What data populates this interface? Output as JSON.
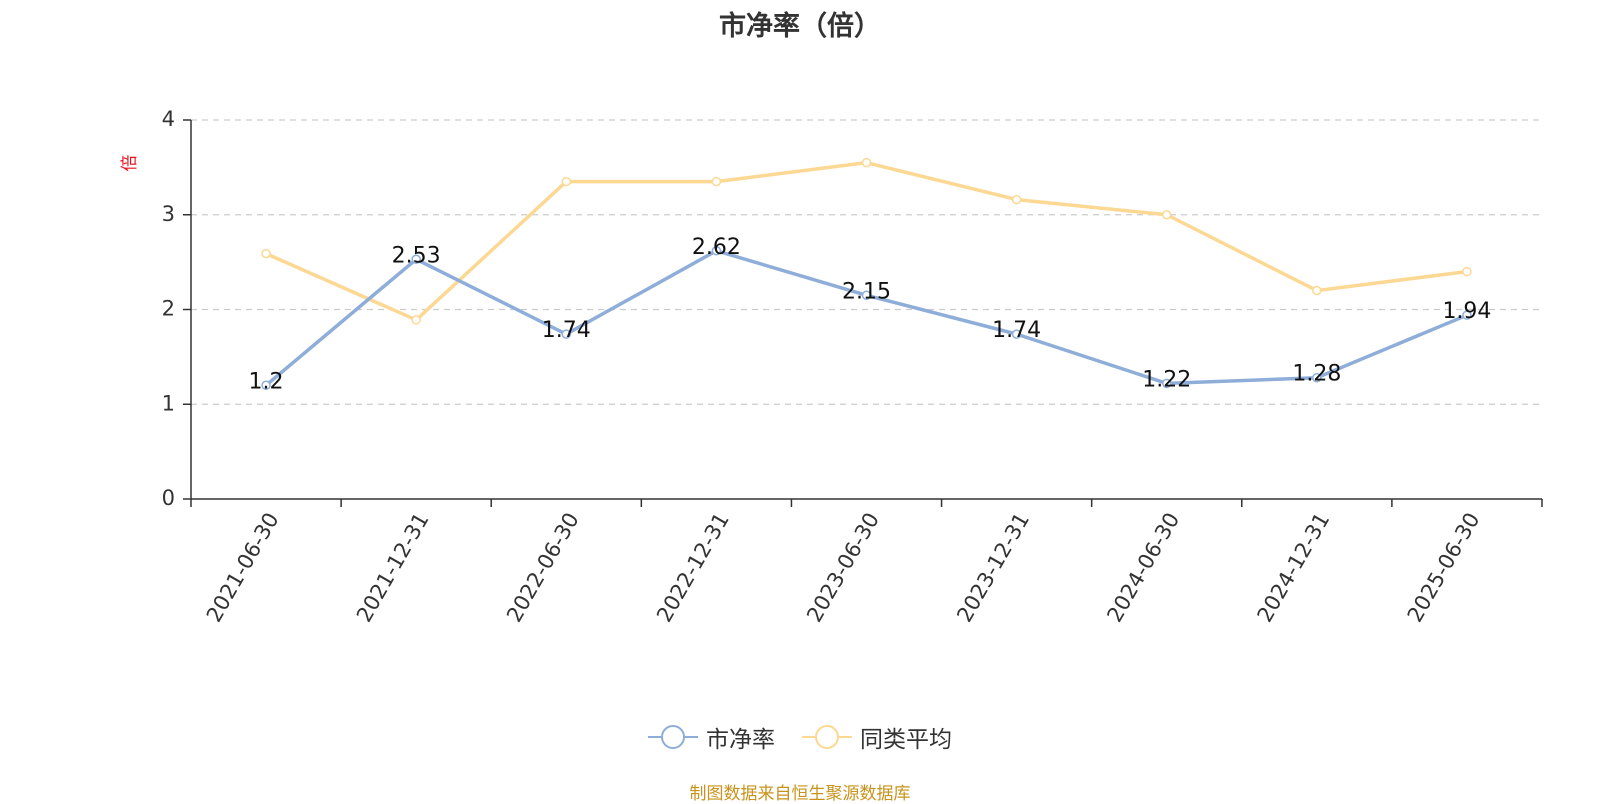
{
  "chart_data": {
    "type": "line",
    "title": "市净率（倍）",
    "ylabel": "倍",
    "ylim": [
      0,
      4
    ],
    "yticks": [
      "0",
      "1",
      "2",
      "3",
      "4"
    ],
    "categories": [
      "2021-06-30",
      "2021-12-31",
      "2022-06-30",
      "2022-12-31",
      "2023-06-30",
      "2023-12-31",
      "2024-06-30",
      "2024-12-31",
      "2025-06-30"
    ],
    "series": [
      {
        "name": "市净率",
        "color": "#8eaed9",
        "values": [
          1.2,
          2.53,
          1.74,
          2.62,
          2.15,
          1.74,
          1.22,
          1.28,
          1.94
        ],
        "labels": [
          "1.2",
          "2.53",
          "1.74",
          "2.62",
          "2.15",
          "1.74",
          "1.22",
          "1.28",
          "1.94"
        ]
      },
      {
        "name": "同类平均",
        "color": "#fcd893",
        "values": [
          2.59,
          1.89,
          3.35,
          3.35,
          3.55,
          3.16,
          3.0,
          2.2,
          2.4
        ]
      }
    ],
    "grid": "horizontal-dashed",
    "legend_position": "bottom-center"
  },
  "source_note": "制图数据来自恒生聚源数据库"
}
